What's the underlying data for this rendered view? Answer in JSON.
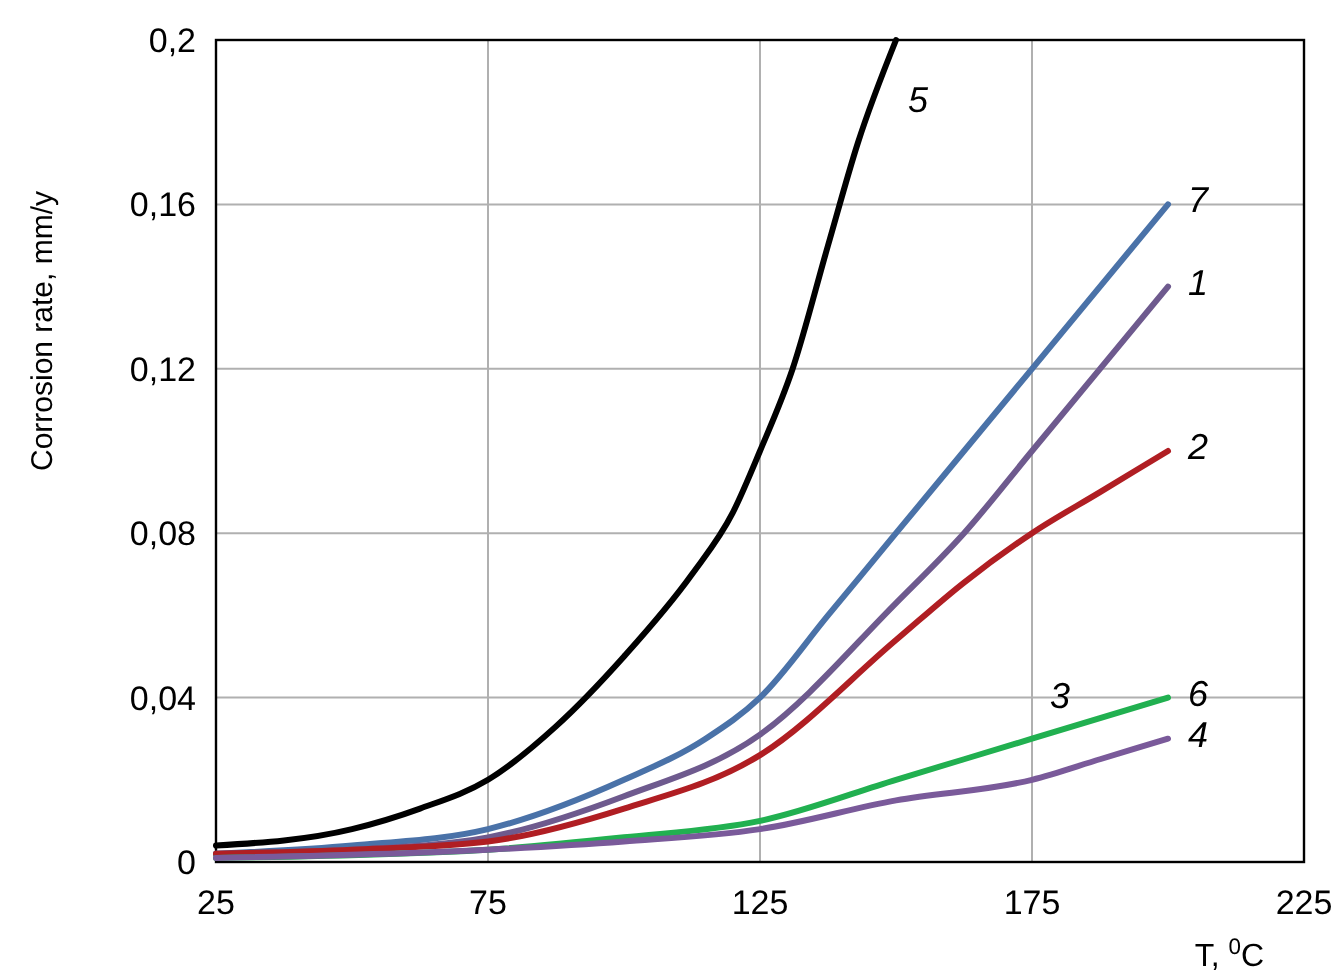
{
  "chart_data": {
    "type": "line",
    "xlabel": "T, $^{0}$C",
    "ylabel": "Corrosion rate, mm/y",
    "xlim": [
      25,
      225
    ],
    "xticks": [
      25,
      75,
      125,
      175,
      225
    ],
    "ylim": [
      0,
      0.2
    ],
    "yticks": [
      {
        "value": 0,
        "label": "0"
      },
      {
        "value": 0.04,
        "label": "0,04"
      },
      {
        "value": 0.08,
        "label": "0,08"
      },
      {
        "value": 0.12,
        "label": "0,12"
      },
      {
        "value": 0.16,
        "label": "0,16"
      },
      {
        "value": 0.2,
        "label": "0,2"
      }
    ],
    "grid": true,
    "line_style": "solid",
    "marker": "none",
    "annotations": [
      "3"
    ],
    "series": [
      {
        "name": "5",
        "color": "#000000",
        "x": [
          25,
          50,
          62.5,
          75,
          87.5,
          100,
          112.5,
          120,
          125,
          131,
          137.5,
          143,
          150
        ],
        "values": [
          0.004,
          0.008,
          0.013,
          0.02,
          0.033,
          0.05,
          0.07,
          0.085,
          0.1,
          0.12,
          0.15,
          0.175,
          0.2
        ]
      },
      {
        "name": "7",
        "color": "#4a72a8",
        "x": [
          25,
          50,
          75,
          100,
          115,
          125,
          137.5,
          150,
          175,
          200
        ],
        "values": [
          0.002,
          0.004,
          0.008,
          0.02,
          0.03,
          0.04,
          0.06,
          0.08,
          0.12,
          0.16
        ]
      },
      {
        "name": "1",
        "color": "#6e5a8e",
        "x": [
          25,
          50,
          75,
          100,
          125,
          150,
          162.5,
          175,
          200
        ],
        "values": [
          0.002,
          0.003,
          0.006,
          0.016,
          0.031,
          0.063,
          0.08,
          0.1,
          0.14
        ]
      },
      {
        "name": "2",
        "color": "#b01e23",
        "x": [
          25,
          50,
          75,
          100,
          125,
          150,
          162.5,
          175,
          187.5,
          200
        ],
        "values": [
          0.002,
          0.003,
          0.005,
          0.013,
          0.026,
          0.054,
          0.068,
          0.08,
          0.09,
          0.1
        ]
      },
      {
        "name": "6",
        "color": "#21b050",
        "x": [
          25,
          75,
          100,
          125,
          150,
          175,
          200
        ],
        "values": [
          0.001,
          0.003,
          0.006,
          0.01,
          0.02,
          0.03,
          0.04
        ]
      },
      {
        "name": "4",
        "color": "#7a5a9a",
        "x": [
          25,
          75,
          100,
          125,
          150,
          175,
          187.5,
          200
        ],
        "values": [
          0.001,
          0.003,
          0.005,
          0.008,
          0.015,
          0.02,
          0.025,
          0.03
        ]
      }
    ]
  }
}
